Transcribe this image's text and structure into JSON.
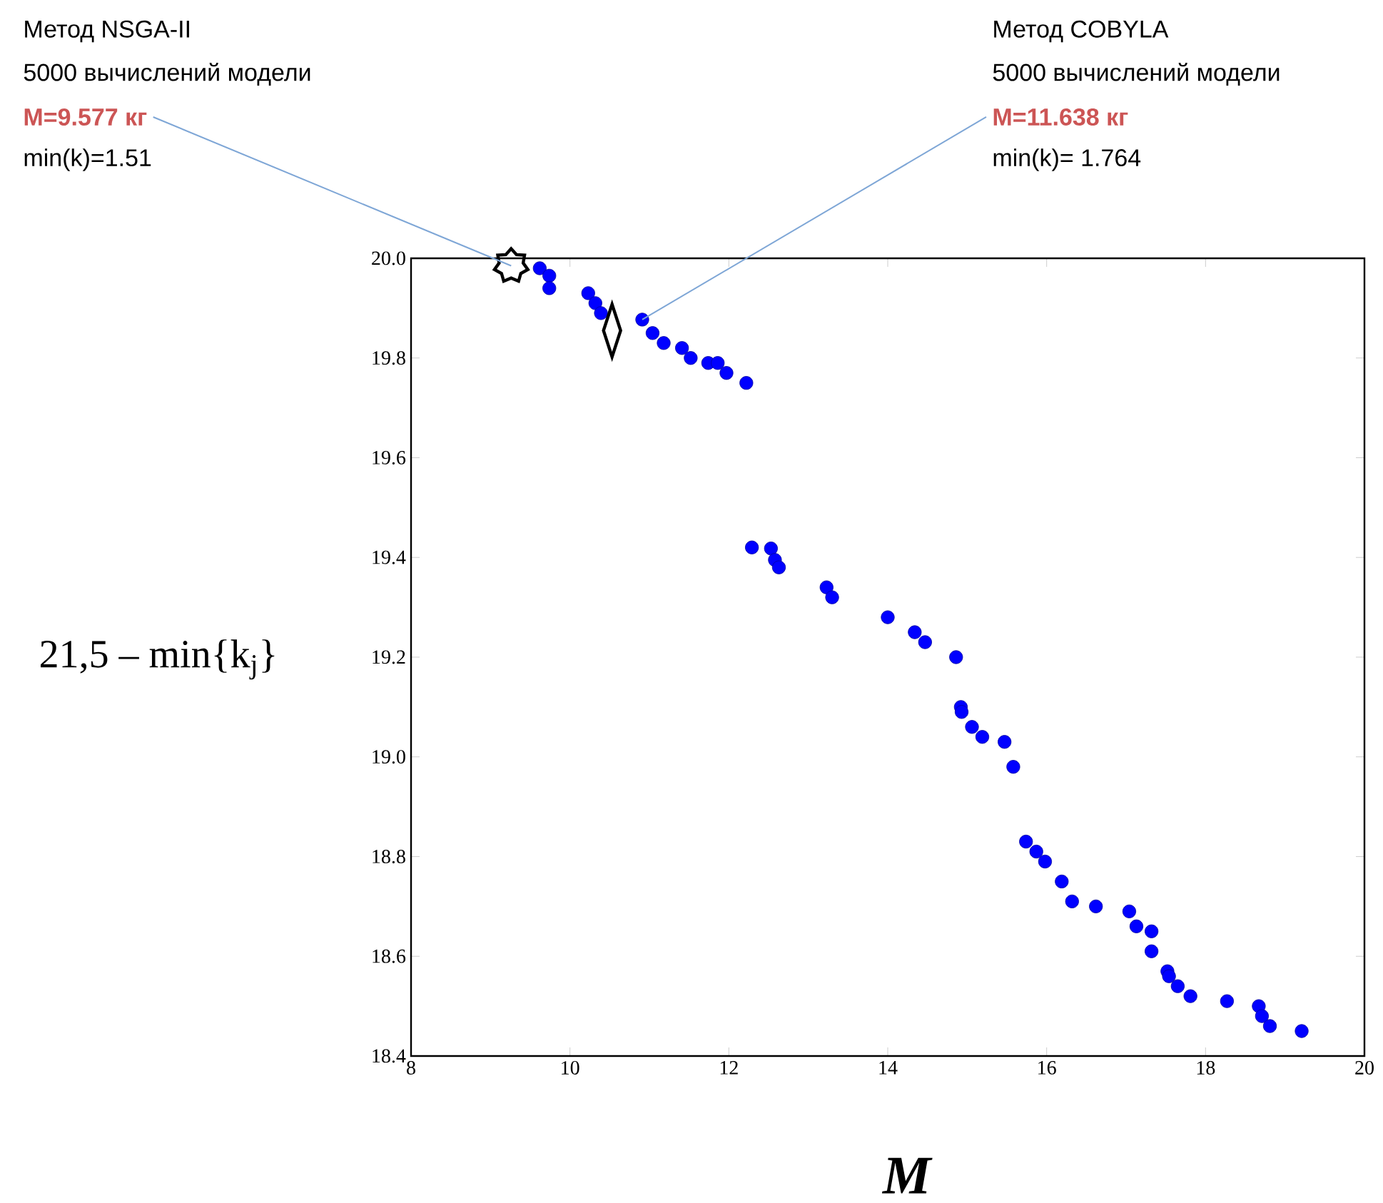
{
  "chart_data": {
    "type": "scatter",
    "xlabel": "M",
    "ylabel": "21,5 – min{k$_{j}$}",
    "xlim": [
      8,
      20
    ],
    "ylim": [
      18.4,
      20.0
    ],
    "xticks": [
      8,
      10,
      12,
      14,
      16,
      18,
      20
    ],
    "yticks": [
      {
        "value": 18.4,
        "label": "18.4"
      },
      {
        "value": 18.6,
        "label": "18.6"
      },
      {
        "value": 18.8,
        "label": "18.8"
      },
      {
        "value": 19.0,
        "label": "19.0"
      },
      {
        "value": 19.2,
        "label": "19.2"
      },
      {
        "value": 19.4,
        "label": "19.4"
      },
      {
        "value": 19.6,
        "label": "19.6"
      },
      {
        "value": 19.8,
        "label": "19.8"
      },
      {
        "value": 20.0,
        "label": "20.0"
      }
    ],
    "grid": false,
    "legend": false,
    "series": [
      {
        "color": "#0000ff",
        "marker": "circle",
        "x": [
          9.62,
          9.74,
          9.74,
          10.23,
          10.32,
          10.39,
          10.91,
          11.04,
          11.18,
          11.41,
          11.52,
          11.74,
          11.86,
          11.97,
          12.22,
          12.29,
          12.53,
          12.58,
          12.63,
          13.23,
          13.3,
          14.0,
          14.34,
          14.47,
          14.86,
          14.92,
          14.93,
          15.06,
          15.19,
          15.47,
          15.58,
          15.74,
          15.87,
          15.98,
          16.19,
          16.32,
          16.62,
          17.04,
          17.13,
          17.32,
          17.32,
          17.52,
          17.54,
          17.65,
          17.81,
          18.27,
          18.67,
          18.71,
          18.81,
          19.21
        ],
        "values": [
          19.98,
          19.965,
          19.94,
          19.93,
          19.91,
          19.89,
          19.877,
          19.85,
          19.83,
          19.82,
          19.8,
          19.79,
          19.79,
          19.77,
          19.75,
          19.42,
          19.418,
          19.395,
          19.38,
          19.34,
          19.32,
          19.28,
          19.25,
          19.23,
          19.2,
          19.1,
          19.09,
          19.06,
          19.04,
          19.03,
          18.98,
          18.83,
          18.81,
          18.79,
          18.75,
          18.71,
          18.7,
          18.69,
          18.66,
          18.65,
          18.61,
          18.57,
          18.56,
          18.54,
          18.52,
          18.51,
          18.5,
          18.48,
          18.46,
          18.45
        ]
      },
      {
        "color": "#000000",
        "marker": "star",
        "x": [
          9.26
        ],
        "values": [
          19.985
        ]
      },
      {
        "color": "#000000",
        "marker": "diamond",
        "x": [
          10.53
        ],
        "values": [
          19.855
        ]
      }
    ],
    "annotations": [
      "Метод NSGA-II",
      "5000 вычислений модели",
      {
        "text": "M=9.577 кг",
        "x": 9.26,
        "y": 19.985
      },
      "min(k)=1.51",
      "Метод COBYLA",
      "5000 вычислений модели",
      {
        "text": "M=11.638 кг",
        "x": 10.91,
        "y": 19.877
      },
      "min(k)= 1.764"
    ]
  }
}
